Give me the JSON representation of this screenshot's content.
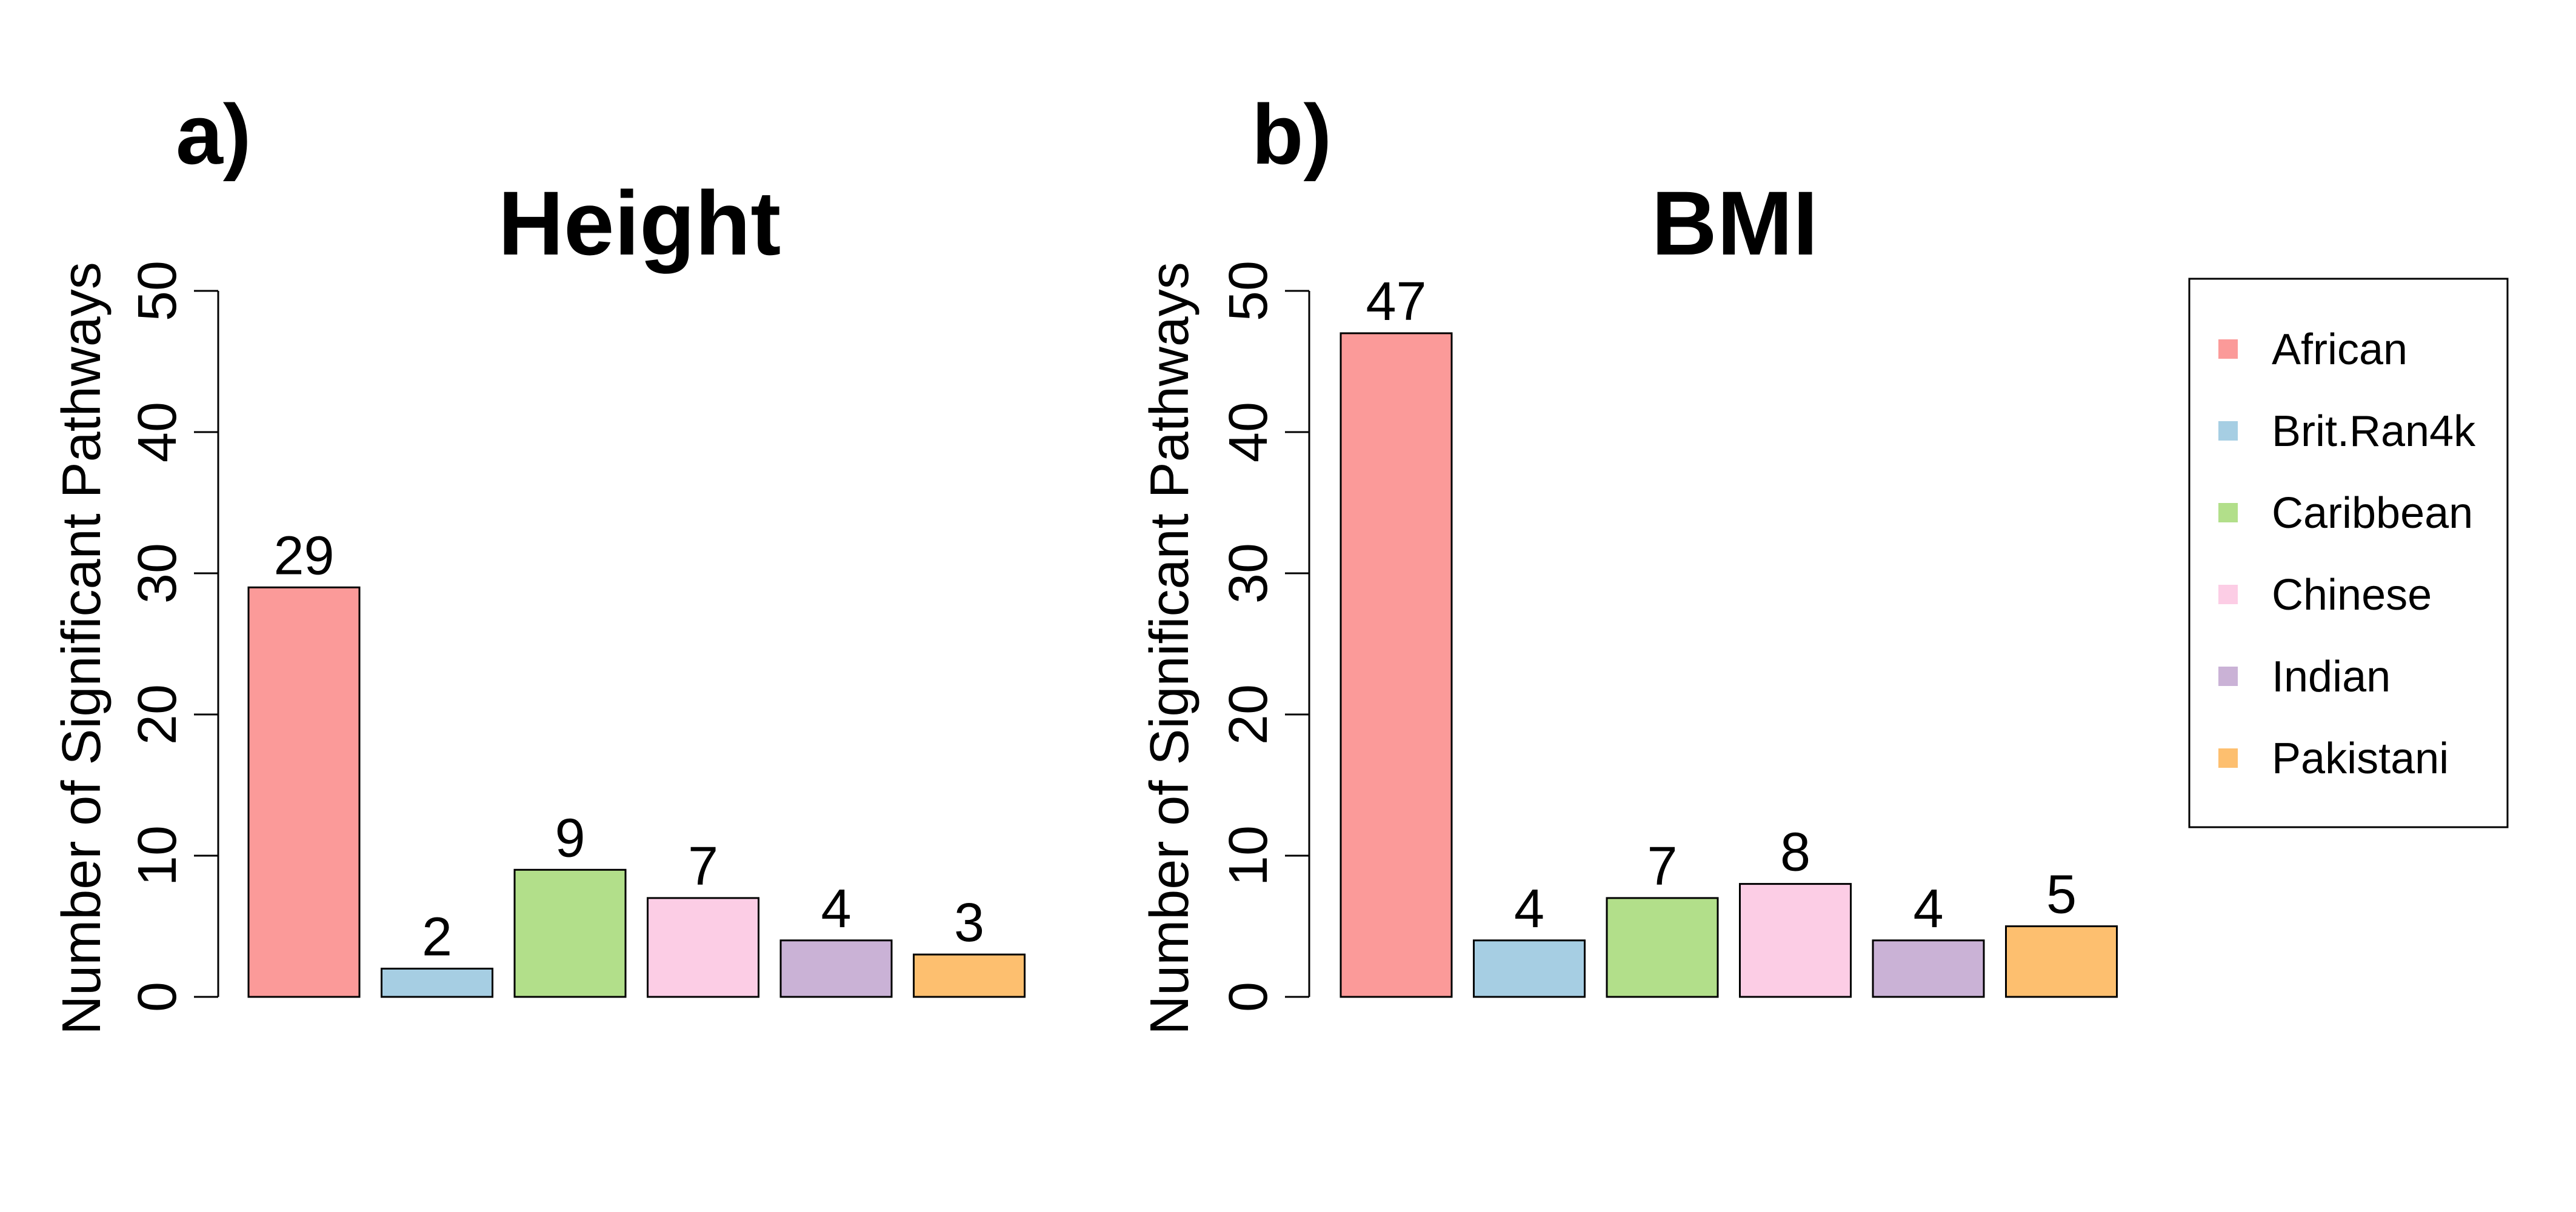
{
  "chart_data": [
    {
      "type": "bar",
      "panel": "a)",
      "title": "Height",
      "ylabel": "Number of Significant Pathways",
      "ylim": [
        0,
        50
      ],
      "yticks": [
        0,
        10,
        20,
        30,
        40,
        50
      ],
      "categories": [
        "African",
        "Brit.Ran4k",
        "Caribbean",
        "Chinese",
        "Indian",
        "Pakistani"
      ],
      "values": [
        29,
        2,
        9,
        7,
        4,
        3
      ],
      "data_labels": [
        "29",
        "2",
        "9",
        "7",
        "4",
        "3"
      ],
      "colors": [
        "#FB9A99",
        "#A6CEE3",
        "#B2DF8A",
        "#FCCDE5",
        "#CAB2D6",
        "#FDBF6F"
      ],
      "grid": false
    },
    {
      "type": "bar",
      "panel": "b)",
      "title": "BMI",
      "ylabel": "Number of Significant Pathways",
      "ylim": [
        0,
        50
      ],
      "yticks": [
        0,
        10,
        20,
        30,
        40,
        50
      ],
      "categories": [
        "African",
        "Brit.Ran4k",
        "Caribbean",
        "Chinese",
        "Indian",
        "Pakistani"
      ],
      "values": [
        47,
        4,
        7,
        8,
        4,
        5
      ],
      "data_labels": [
        "47",
        "4",
        "7",
        "8",
        "4",
        "5"
      ],
      "colors": [
        "#FB9A99",
        "#A6CEE3",
        "#B2DF8A",
        "#FCCDE5",
        "#CAB2D6",
        "#FDBF6F"
      ],
      "grid": false
    }
  ],
  "legend": {
    "placement": "right",
    "entries": [
      {
        "label": "African",
        "color": "#FB9A99"
      },
      {
        "label": "Brit.Ran4k",
        "color": "#A6CEE3"
      },
      {
        "label": "Caribbean",
        "color": "#B2DF8A"
      },
      {
        "label": "Chinese",
        "color": "#FCCDE5"
      },
      {
        "label": "Indian",
        "color": "#CAB2D6"
      },
      {
        "label": "Pakistani",
        "color": "#FDBF6F"
      }
    ]
  }
}
